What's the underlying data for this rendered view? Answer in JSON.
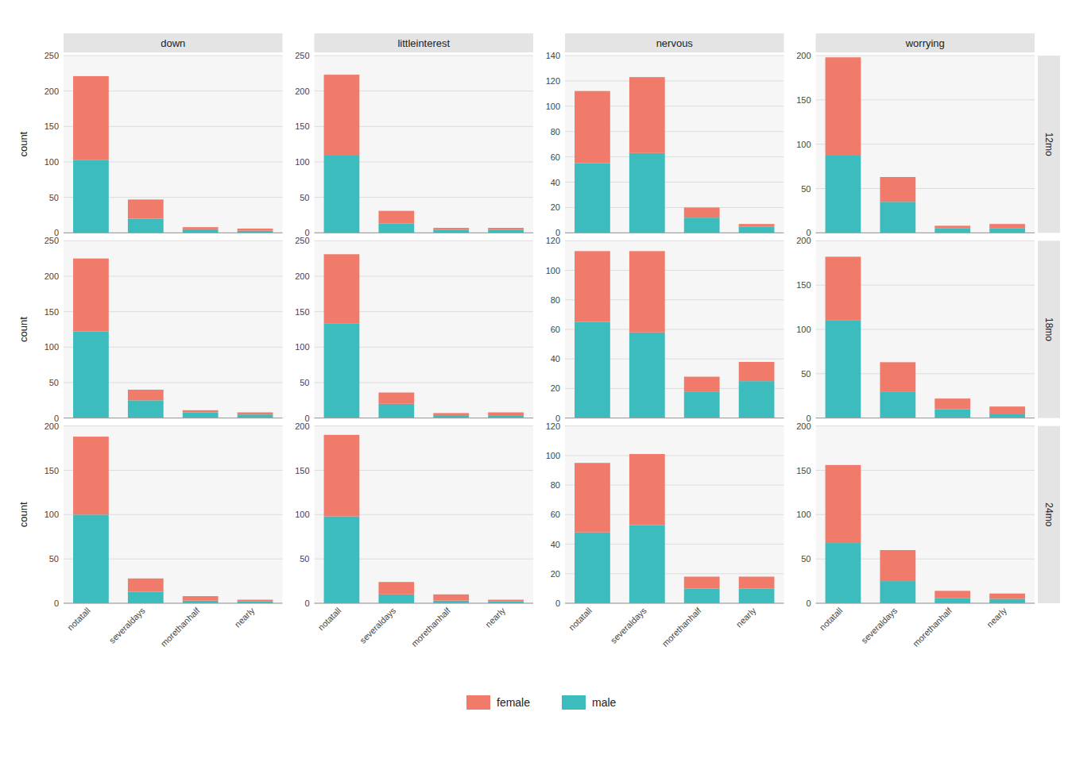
{
  "chart_data": [
    {
      "type": "bar",
      "stacked": true,
      "grid": true,
      "title": "down",
      "ylabel": "count",
      "legend": "bottom",
      "tick_labels": "y",
      "categories": [
        "notatall",
        "severaldays",
        "morethanhalf",
        "nearly"
      ],
      "series": [
        {
          "name": "male",
          "color": "#3cbcbc",
          "values": [
            103,
            20,
            5,
            3
          ]
        },
        {
          "name": "female",
          "color": "#f07b6b",
          "values": [
            118,
            27,
            3,
            3
          ]
        }
      ],
      "ylim": [
        0,
        250
      ],
      "yticks": [
        0,
        50,
        100,
        150,
        200,
        250
      ]
    },
    {
      "type": "bar",
      "stacked": true,
      "grid": true,
      "title": "littleinterest",
      "tick_labels": "y",
      "categories": [
        "notatall",
        "severaldays",
        "morethanhalf",
        "nearly"
      ],
      "series": [
        {
          "name": "male",
          "color": "#3cbcbc",
          "values": [
            110,
            13,
            4,
            4
          ]
        },
        {
          "name": "female",
          "color": "#f07b6b",
          "values": [
            113,
            18,
            3,
            3
          ]
        }
      ],
      "ylim": [
        0,
        250
      ],
      "yticks": [
        0,
        50,
        100,
        150,
        200,
        250
      ]
    },
    {
      "type": "bar",
      "stacked": true,
      "grid": true,
      "title": "nervous",
      "tick_labels": "y",
      "categories": [
        "notatall",
        "severaldays",
        "morethanhalf",
        "nearly"
      ],
      "series": [
        {
          "name": "male",
          "color": "#3cbcbc",
          "values": [
            55,
            63,
            12,
            5
          ]
        },
        {
          "name": "female",
          "color": "#f07b6b",
          "values": [
            57,
            60,
            8,
            2
          ]
        }
      ],
      "ylim": [
        0,
        140
      ],
      "yticks": [
        0,
        20,
        40,
        60,
        80,
        100,
        120,
        140
      ]
    },
    {
      "type": "bar",
      "stacked": true,
      "grid": true,
      "title": "worrying",
      "annotations": [
        "12mo"
      ],
      "tick_labels": "y",
      "categories": [
        "notatall",
        "severaldays",
        "morethanhalf",
        "nearly"
      ],
      "series": [
        {
          "name": "male",
          "color": "#3cbcbc",
          "values": [
            88,
            35,
            5,
            5
          ]
        },
        {
          "name": "female",
          "color": "#f07b6b",
          "values": [
            110,
            28,
            3,
            5
          ]
        }
      ],
      "ylim": [
        0,
        200
      ],
      "yticks": [
        0,
        50,
        100,
        150,
        200
      ]
    },
    {
      "type": "bar",
      "stacked": true,
      "grid": true,
      "ylabel": "count",
      "tick_labels": "y",
      "categories": [
        "notatall",
        "severaldays",
        "morethanhalf",
        "nearly"
      ],
      "series": [
        {
          "name": "male",
          "color": "#3cbcbc",
          "values": [
            122,
            25,
            8,
            5
          ]
        },
        {
          "name": "female",
          "color": "#f07b6b",
          "values": [
            103,
            15,
            3,
            3
          ]
        }
      ],
      "ylim": [
        0,
        250
      ],
      "yticks": [
        0,
        50,
        100,
        150,
        200,
        250
      ]
    },
    {
      "type": "bar",
      "stacked": true,
      "grid": true,
      "tick_labels": "y",
      "categories": [
        "notatall",
        "severaldays",
        "morethanhalf",
        "nearly"
      ],
      "series": [
        {
          "name": "male",
          "color": "#3cbcbc",
          "values": [
            133,
            20,
            4,
            4
          ]
        },
        {
          "name": "female",
          "color": "#f07b6b",
          "values": [
            98,
            16,
            3,
            4
          ]
        }
      ],
      "ylim": [
        0,
        250
      ],
      "yticks": [
        0,
        50,
        100,
        150,
        200,
        250
      ]
    },
    {
      "type": "bar",
      "stacked": true,
      "grid": true,
      "tick_labels": "y",
      "categories": [
        "notatall",
        "severaldays",
        "morethanhalf",
        "nearly"
      ],
      "series": [
        {
          "name": "male",
          "color": "#3cbcbc",
          "values": [
            65,
            58,
            18,
            25
          ]
        },
        {
          "name": "female",
          "color": "#f07b6b",
          "values": [
            48,
            55,
            10,
            13
          ]
        }
      ],
      "ylim": [
        0,
        120
      ],
      "yticks": [
        0,
        20,
        40,
        60,
        80,
        100,
        120
      ]
    },
    {
      "type": "bar",
      "stacked": true,
      "grid": true,
      "annotations": [
        "18mo"
      ],
      "tick_labels": "y",
      "categories": [
        "notatall",
        "severaldays",
        "morethanhalf",
        "nearly"
      ],
      "series": [
        {
          "name": "male",
          "color": "#3cbcbc",
          "values": [
            110,
            30,
            10,
            5
          ]
        },
        {
          "name": "female",
          "color": "#f07b6b",
          "values": [
            72,
            33,
            12,
            8
          ]
        }
      ],
      "ylim": [
        0,
        200
      ],
      "yticks": [
        0,
        50,
        100,
        150,
        200
      ]
    },
    {
      "type": "bar",
      "stacked": true,
      "grid": true,
      "ylabel": "count",
      "categories": [
        "notatall",
        "severaldays",
        "morethanhalf",
        "nearly"
      ],
      "series": [
        {
          "name": "male",
          "color": "#3cbcbc",
          "values": [
            100,
            13,
            3,
            2
          ]
        },
        {
          "name": "female",
          "color": "#f07b6b",
          "values": [
            88,
            15,
            5,
            2
          ]
        }
      ],
      "ylim": [
        0,
        200
      ],
      "yticks": [
        0,
        50,
        100,
        150,
        200
      ]
    },
    {
      "type": "bar",
      "stacked": true,
      "grid": true,
      "categories": [
        "notatall",
        "severaldays",
        "morethanhalf",
        "nearly"
      ],
      "series": [
        {
          "name": "male",
          "color": "#3cbcbc",
          "values": [
            98,
            10,
            3,
            2
          ]
        },
        {
          "name": "female",
          "color": "#f07b6b",
          "values": [
            92,
            14,
            7,
            2
          ]
        }
      ],
      "ylim": [
        0,
        200
      ],
      "yticks": [
        0,
        50,
        100,
        150,
        200
      ]
    },
    {
      "type": "bar",
      "stacked": true,
      "grid": true,
      "categories": [
        "notatall",
        "severaldays",
        "morethanhalf",
        "nearly"
      ],
      "series": [
        {
          "name": "male",
          "color": "#3cbcbc",
          "values": [
            48,
            53,
            10,
            10
          ]
        },
        {
          "name": "female",
          "color": "#f07b6b",
          "values": [
            47,
            48,
            8,
            8
          ]
        }
      ],
      "ylim": [
        0,
        120
      ],
      "yticks": [
        0,
        20,
        40,
        60,
        80,
        100,
        120
      ]
    },
    {
      "type": "bar",
      "stacked": true,
      "grid": true,
      "annotations": [
        "24mo"
      ],
      "categories": [
        "notatall",
        "severaldays",
        "morethanhalf",
        "nearly"
      ],
      "series": [
        {
          "name": "male",
          "color": "#3cbcbc",
          "values": [
            68,
            25,
            6,
            5
          ]
        },
        {
          "name": "female",
          "color": "#f07b6b",
          "values": [
            88,
            35,
            8,
            6
          ]
        }
      ],
      "ylim": [
        0,
        200
      ],
      "yticks": [
        0,
        50,
        100,
        150,
        200
      ]
    }
  ]
}
